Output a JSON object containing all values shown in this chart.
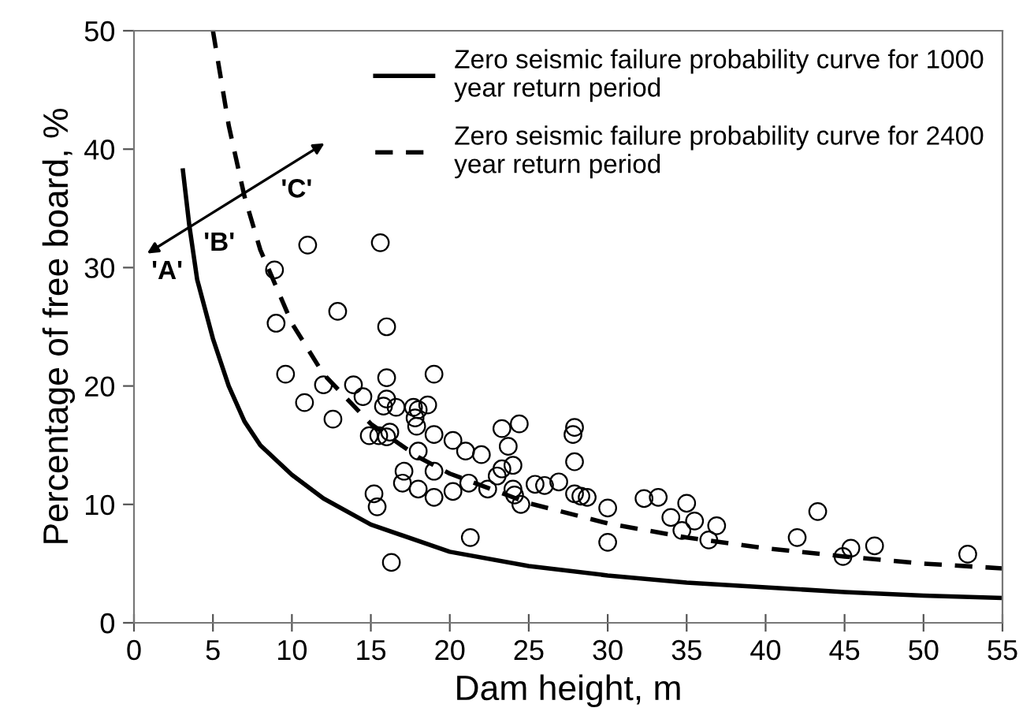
{
  "chart_data": {
    "type": "scatter",
    "xlabel": "Dam height, m",
    "ylabel": "Percentage of free board, %",
    "xlim": [
      0,
      55
    ],
    "ylim": [
      0,
      50
    ],
    "xticks": [
      0,
      5,
      10,
      15,
      20,
      25,
      30,
      35,
      40,
      45,
      50,
      55
    ],
    "yticks": [
      0,
      10,
      20,
      30,
      40,
      50
    ],
    "grid": false,
    "legend": "top right",
    "annotations": [
      "'A'",
      "'B'",
      "'C'"
    ],
    "series": [
      {
        "name": "Zero seismic failure probability curve for 1000 year return period",
        "type": "line",
        "color": "#000000",
        "line_style": "solid",
        "marker": "none",
        "x": [
          3.1,
          3.5,
          4,
          5,
          6,
          7,
          8,
          10,
          12,
          15,
          20,
          25,
          30,
          35,
          40,
          45,
          50,
          55
        ],
        "values": [
          38.2,
          33.6,
          29,
          24,
          20,
          17,
          15,
          12.5,
          10.5,
          8.3,
          6.0,
          4.8,
          4.0,
          3.4,
          3.0,
          2.6,
          2.3,
          2.1
        ]
      },
      {
        "name": "Zero seismic failure probability curve for 2400 year return period",
        "type": "line",
        "color": "#000000",
        "line_style": "dashed",
        "marker": "none",
        "x": [
          5,
          6,
          7,
          8,
          10,
          12,
          15,
          18,
          20,
          25,
          30,
          35,
          40,
          45,
          50,
          55
        ],
        "values": [
          50,
          42,
          36,
          31.5,
          25.3,
          21,
          16.8,
          14,
          12.6,
          10.1,
          8.4,
          7.2,
          6.3,
          5.6,
          5.0,
          4.6
        ]
      },
      {
        "color": "#000000",
        "marker": "circle",
        "x": [
          11.0,
          15.6,
          8.9,
          12.9,
          9.0,
          16.0,
          9.6,
          16.0,
          19.0,
          12.0,
          13.9,
          14.5,
          10.8,
          16.0,
          15.8,
          16.6,
          17.7,
          18.6,
          18.0,
          17.8,
          17.9,
          12.6,
          14.9,
          15.5,
          16.2,
          16.0,
          19.0,
          18.0,
          17.1,
          17.0,
          19.0,
          18.0,
          19.0,
          15.2,
          15.4,
          16.3,
          20.2,
          21.0,
          22.0,
          23.3,
          24.4,
          23.7,
          24.0,
          23.3,
          23.0,
          22.4,
          21.2,
          20.2,
          24.0,
          24.1,
          24.5,
          21.3,
          25.4,
          26.0,
          26.9,
          27.9,
          27.8,
          27.9,
          27.9,
          28.3,
          28.7,
          30.0,
          30.0,
          32.3,
          33.2,
          35.0,
          34.0,
          34.7,
          35.5,
          36.4,
          36.9,
          42.0,
          43.3,
          44.9,
          45.4,
          46.9,
          52.8
        ],
        "values": [
          31.9,
          32.1,
          29.8,
          26.3,
          25.3,
          25.0,
          21.0,
          20.7,
          21.0,
          20.1,
          20.1,
          19.1,
          18.6,
          18.9,
          18.3,
          18.2,
          18.2,
          18.4,
          18.0,
          17.3,
          16.6,
          17.2,
          15.8,
          15.8,
          16.1,
          15.7,
          15.9,
          14.5,
          12.8,
          11.8,
          12.8,
          11.3,
          10.6,
          10.9,
          9.8,
          5.1,
          15.4,
          14.5,
          14.2,
          16.4,
          16.8,
          14.9,
          13.3,
          13.0,
          12.4,
          11.3,
          11.8,
          11.1,
          11.3,
          10.8,
          10.0,
          7.2,
          11.7,
          11.6,
          11.9,
          16.5,
          15.9,
          13.6,
          10.9,
          10.7,
          10.6,
          9.7,
          6.8,
          10.5,
          10.6,
          10.1,
          8.9,
          7.8,
          8.6,
          7.0,
          8.2,
          7.2,
          9.4,
          5.6,
          6.3,
          6.5,
          5.8
        ]
      }
    ]
  }
}
